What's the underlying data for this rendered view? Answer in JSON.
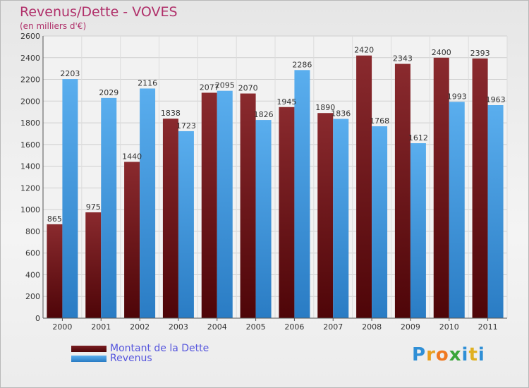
{
  "title": "Revenus/Dette - VOVES",
  "subtitle": "(en milliers d'€)",
  "logo": {
    "letters": [
      "P",
      "r",
      "o",
      "x",
      "i",
      "t",
      "i"
    ],
    "colors": [
      "#2f8fd6",
      "#e8a020",
      "#f07820",
      "#3aa53a",
      "#2f8fd6",
      "#e0b020",
      "#2f8fd6"
    ]
  },
  "chart_data": {
    "type": "bar",
    "categories": [
      "2000",
      "2001",
      "2002",
      "2003",
      "2004",
      "2005",
      "2006",
      "2007",
      "2008",
      "2009",
      "2010",
      "2011"
    ],
    "series": [
      {
        "name": "Montant de la Dette",
        "color": "#7a1e22",
        "values": [
          865,
          975,
          1440,
          1838,
          2077,
          2070,
          1945,
          1890,
          2420,
          2343,
          2400,
          2393
        ]
      },
      {
        "name": "Revenus",
        "color": "#4fa3e8",
        "values": [
          2203,
          2029,
          2116,
          1723,
          2095,
          1826,
          2286,
          1836,
          1768,
          1612,
          1993,
          1963
        ]
      }
    ],
    "ylim": [
      0,
      2600
    ],
    "yticks": [
      0,
      200,
      400,
      600,
      800,
      1000,
      1200,
      1400,
      1600,
      1800,
      2000,
      2200,
      2400,
      2600
    ],
    "grid": true,
    "legend": "bottom-left"
  }
}
